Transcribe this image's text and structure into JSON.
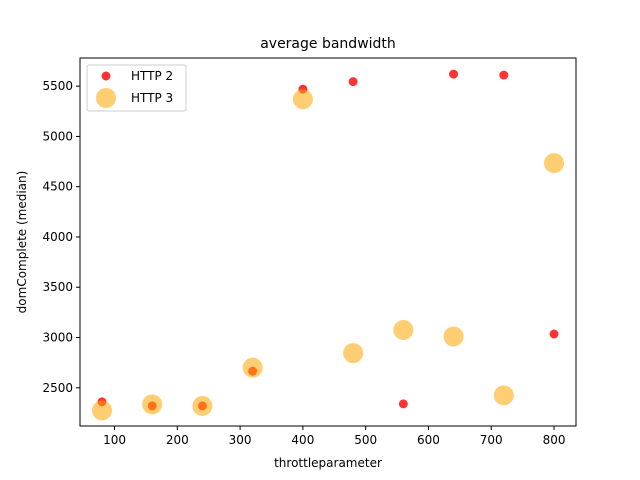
{
  "chart_data": {
    "type": "scatter",
    "title": "average bandwidth",
    "xlabel": "throttleparameter",
    "ylabel": "domComplete (median)",
    "xlim": [
      45,
      835
    ],
    "ylim": [
      2120,
      5780
    ],
    "xticks": [
      100,
      200,
      300,
      400,
      500,
      600,
      700,
      800
    ],
    "yticks": [
      2500,
      3000,
      3500,
      4000,
      4500,
      5000,
      5500
    ],
    "grid": false,
    "legend_position": "top-left",
    "series": [
      {
        "name": "HTTP 2",
        "color": "#ff0000",
        "opacity": 0.8,
        "marker": "small-circle",
        "points": [
          {
            "x": 80,
            "y": 2360
          },
          {
            "x": 160,
            "y": 2320
          },
          {
            "x": 240,
            "y": 2320
          },
          {
            "x": 320,
            "y": 2665
          },
          {
            "x": 400,
            "y": 5470
          },
          {
            "x": 480,
            "y": 5545
          },
          {
            "x": 560,
            "y": 2340
          },
          {
            "x": 640,
            "y": 5620
          },
          {
            "x": 720,
            "y": 5610
          },
          {
            "x": 800,
            "y": 3035
          }
        ]
      },
      {
        "name": "HTTP 3",
        "color": "#ffa500",
        "opacity": 0.55,
        "marker": "large-circle",
        "points": [
          {
            "x": 80,
            "y": 2275
          },
          {
            "x": 160,
            "y": 2335
          },
          {
            "x": 240,
            "y": 2320
          },
          {
            "x": 320,
            "y": 2700
          },
          {
            "x": 400,
            "y": 5370
          },
          {
            "x": 480,
            "y": 2845
          },
          {
            "x": 560,
            "y": 3075
          },
          {
            "x": 640,
            "y": 3010
          },
          {
            "x": 720,
            "y": 2425
          },
          {
            "x": 800,
            "y": 4735
          }
        ]
      }
    ]
  }
}
